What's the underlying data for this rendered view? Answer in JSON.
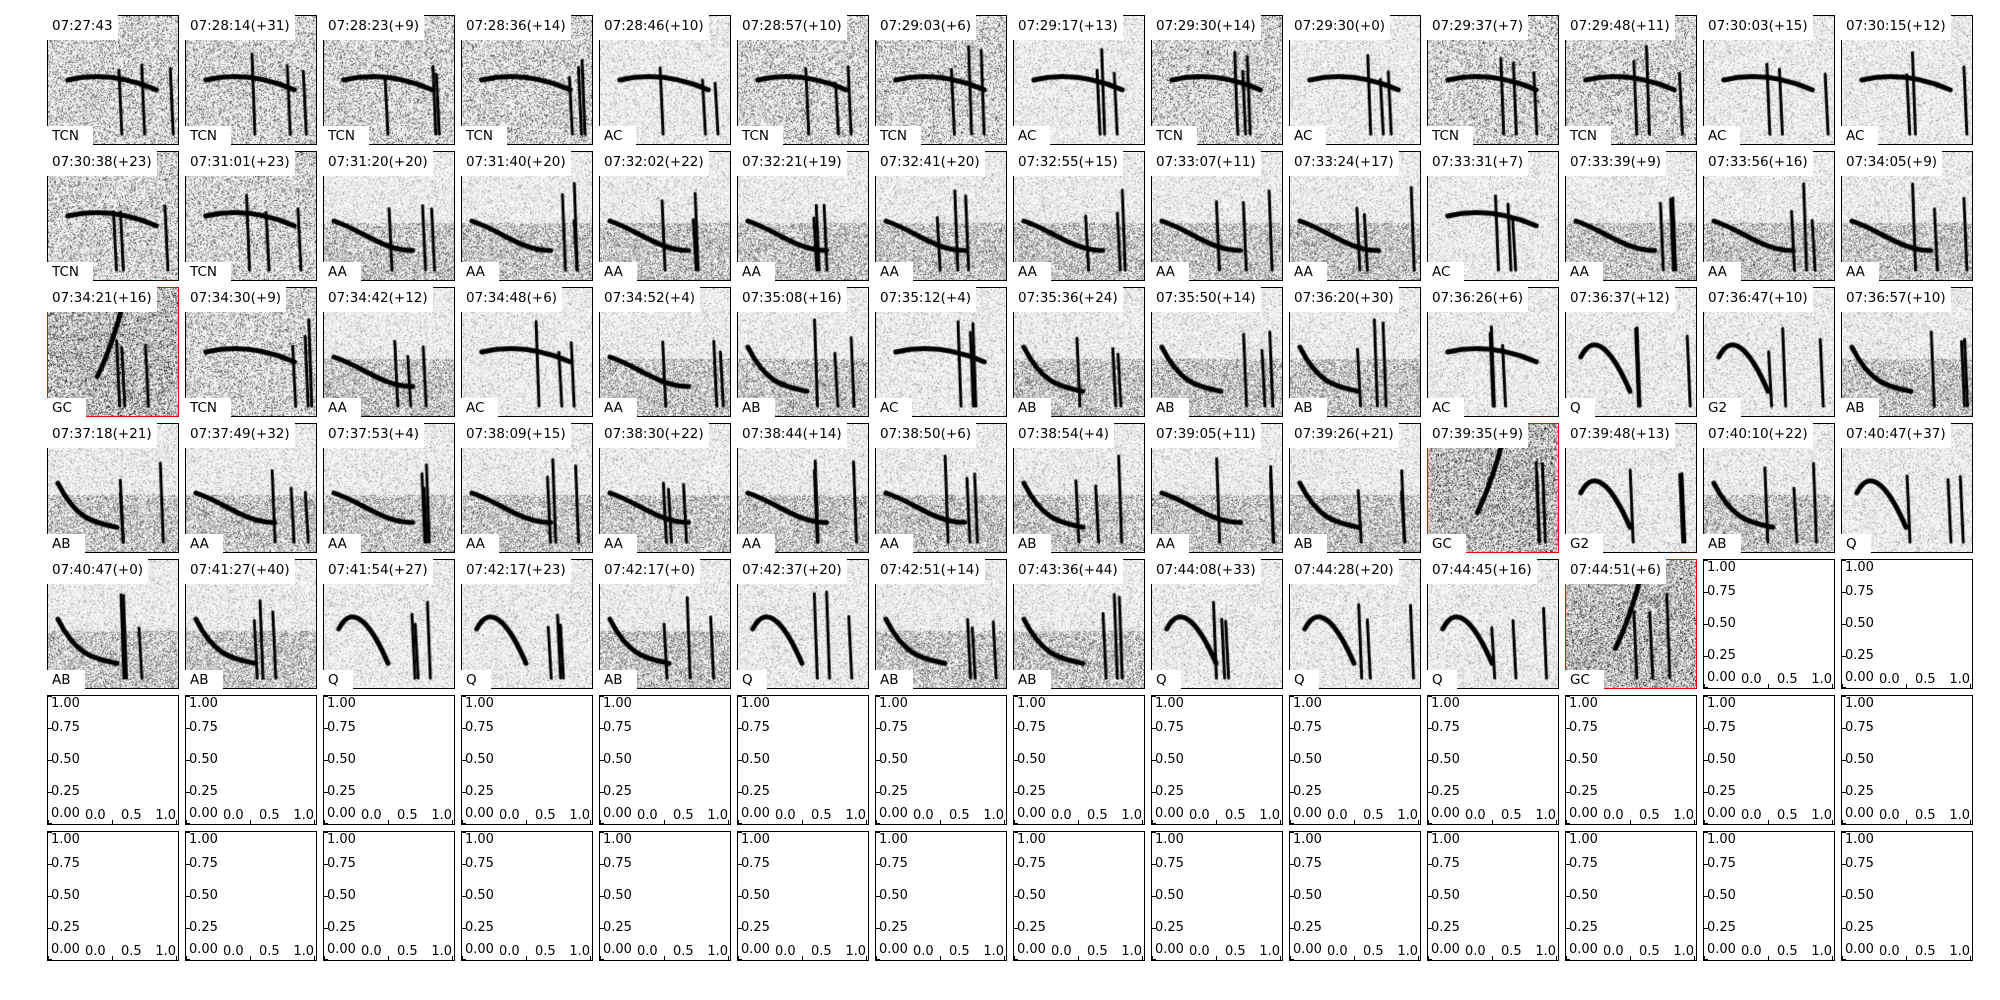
{
  "chart_data": {
    "type": "spectrogram-grid",
    "grid": {
      "rows": 7,
      "cols": 14
    },
    "highlight_color": "#ff0000",
    "panels": [
      {
        "time": "07:27:43",
        "label": "TCN"
      },
      {
        "time": "07:28:14(+31)",
        "label": "TCN"
      },
      {
        "time": "07:28:23(+9)",
        "label": "TCN"
      },
      {
        "time": "07:28:36(+14)",
        "label": "TCN"
      },
      {
        "time": "07:28:46(+10)",
        "label": "AC"
      },
      {
        "time": "07:28:57(+10)",
        "label": "TCN"
      },
      {
        "time": "07:29:03(+6)",
        "label": "TCN"
      },
      {
        "time": "07:29:17(+13)",
        "label": "AC"
      },
      {
        "time": "07:29:30(+14)",
        "label": "TCN"
      },
      {
        "time": "07:29:30(+0)",
        "label": "AC"
      },
      {
        "time": "07:29:37(+7)",
        "label": "TCN"
      },
      {
        "time": "07:29:48(+11)",
        "label": "TCN"
      },
      {
        "time": "07:30:03(+15)",
        "label": "AC"
      },
      {
        "time": "07:30:15(+12)",
        "label": "AC"
      },
      {
        "time": "07:30:38(+23)",
        "label": "TCN"
      },
      {
        "time": "07:31:01(+23)",
        "label": "TCN"
      },
      {
        "time": "07:31:20(+20)",
        "label": "AA"
      },
      {
        "time": "07:31:40(+20)",
        "label": "AA"
      },
      {
        "time": "07:32:02(+22)",
        "label": "AA"
      },
      {
        "time": "07:32:21(+19)",
        "label": "AA"
      },
      {
        "time": "07:32:41(+20)",
        "label": "AA"
      },
      {
        "time": "07:32:55(+15)",
        "label": "AA"
      },
      {
        "time": "07:33:07(+11)",
        "label": "AA"
      },
      {
        "time": "07:33:24(+17)",
        "label": "AA"
      },
      {
        "time": "07:33:31(+7)",
        "label": "AC"
      },
      {
        "time": "07:33:39(+9)",
        "label": "AA"
      },
      {
        "time": "07:33:56(+16)",
        "label": "AA"
      },
      {
        "time": "07:34:05(+9)",
        "label": "AA"
      },
      {
        "time": "07:34:21(+16)",
        "label": "GC",
        "highlight": true
      },
      {
        "time": "07:34:30(+9)",
        "label": "TCN"
      },
      {
        "time": "07:34:42(+12)",
        "label": "AA"
      },
      {
        "time": "07:34:48(+6)",
        "label": "AC"
      },
      {
        "time": "07:34:52(+4)",
        "label": "AA"
      },
      {
        "time": "07:35:08(+16)",
        "label": "AB"
      },
      {
        "time": "07:35:12(+4)",
        "label": "AC"
      },
      {
        "time": "07:35:36(+24)",
        "label": "AB"
      },
      {
        "time": "07:35:50(+14)",
        "label": "AB"
      },
      {
        "time": "07:36:20(+30)",
        "label": "AB"
      },
      {
        "time": "07:36:26(+6)",
        "label": "AC"
      },
      {
        "time": "07:36:37(+12)",
        "label": "Q"
      },
      {
        "time": "07:36:47(+10)",
        "label": "G2"
      },
      {
        "time": "07:36:57(+10)",
        "label": "AB"
      },
      {
        "time": "07:37:18(+21)",
        "label": "AB"
      },
      {
        "time": "07:37:49(+32)",
        "label": "AA"
      },
      {
        "time": "07:37:53(+4)",
        "label": "AA"
      },
      {
        "time": "07:38:09(+15)",
        "label": "AA"
      },
      {
        "time": "07:38:30(+22)",
        "label": "AA"
      },
      {
        "time": "07:38:44(+14)",
        "label": "AA"
      },
      {
        "time": "07:38:50(+6)",
        "label": "AA"
      },
      {
        "time": "07:38:54(+4)",
        "label": "AB"
      },
      {
        "time": "07:39:05(+11)",
        "label": "AA"
      },
      {
        "time": "07:39:26(+21)",
        "label": "AB"
      },
      {
        "time": "07:39:35(+9)",
        "label": "GC",
        "highlight": true
      },
      {
        "time": "07:39:48(+13)",
        "label": "G2"
      },
      {
        "time": "07:40:10(+22)",
        "label": "AB"
      },
      {
        "time": "07:40:47(+37)",
        "label": "Q"
      },
      {
        "time": "07:40:47(+0)",
        "label": "AB"
      },
      {
        "time": "07:41:27(+40)",
        "label": "AB"
      },
      {
        "time": "07:41:54(+27)",
        "label": "Q"
      },
      {
        "time": "07:42:17(+23)",
        "label": "Q"
      },
      {
        "time": "07:42:17(+0)",
        "label": "AB"
      },
      {
        "time": "07:42:37(+20)",
        "label": "Q"
      },
      {
        "time": "07:42:51(+14)",
        "label": "AB"
      },
      {
        "time": "07:43:36(+44)",
        "label": "AB"
      },
      {
        "time": "07:44:08(+33)",
        "label": "Q"
      },
      {
        "time": "07:44:28(+20)",
        "label": "Q"
      },
      {
        "time": "07:44:45(+16)",
        "label": "Q"
      },
      {
        "time": "07:44:51(+6)",
        "label": "GC",
        "highlight": true
      }
    ],
    "empty_axes": {
      "count": 30,
      "ylim": [
        0,
        1
      ],
      "xlim": [
        0,
        1
      ],
      "yticks": [
        "0.00",
        "0.25",
        "0.50",
        "0.75",
        "1.00"
      ],
      "xticks": [
        "0.0",
        "0.5",
        "1.0"
      ]
    }
  }
}
